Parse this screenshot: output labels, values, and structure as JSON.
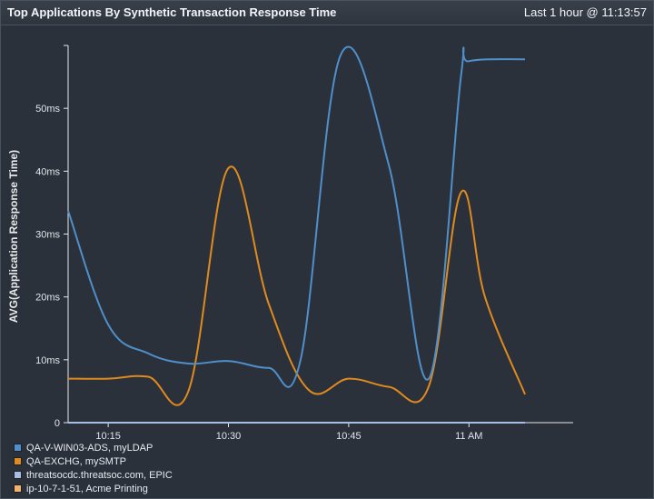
{
  "header": {
    "title": "Top Applications By Synthetic Transaction Response Time",
    "time_range": "Last 1 hour @ 11:13:57"
  },
  "colors": {
    "background": "#2b313b",
    "axis": "#e8e8e8"
  },
  "chart_data": {
    "type": "line",
    "title": "",
    "xlabel": "",
    "ylabel": "AVG(Application Response Time)",
    "ylim": [
      0,
      60
    ],
    "y_unit": "ms",
    "y_ticks": [
      0,
      10,
      20,
      30,
      40,
      50
    ],
    "y_tick_labels": [
      "0",
      "10ms",
      "20ms",
      "30ms",
      "40ms",
      "50ms"
    ],
    "xlim": [
      "10:10",
      "11:13"
    ],
    "x_ticks": [
      "10:15",
      "10:30",
      "10:45",
      "11:00"
    ],
    "x_tick_labels": [
      "10:15",
      "10:30",
      "10:45",
      "11 AM"
    ],
    "grid": false,
    "legend_position": "bottom-left",
    "x": [
      "10:10",
      "10:15",
      "10:20",
      "10:25",
      "10:30",
      "10:35",
      "10:40",
      "10:45",
      "10:50",
      "10:55",
      "11:00",
      "11:05",
      "11:10"
    ],
    "series": [
      {
        "name": "QA-V-WIN03-ADS, myLDAP",
        "color": "#4f8fca",
        "values": [
          33.7,
          15.6,
          11,
          9.4,
          9.8,
          8.7,
          10,
          58.5,
          41,
          7,
          55,
          57.5,
          57.8
        ],
        "x": [
          "10:10",
          "10:15",
          "10:20",
          "10:25",
          "10:30",
          "10:35",
          "10:39",
          "10:44",
          "10:50",
          "10:55",
          "10:59",
          "11:00",
          "11:07"
        ]
      },
      {
        "name": "QA-EXCHG, mySMTP",
        "color": "#e08a1e",
        "values": [
          7,
          7,
          7.3,
          5,
          40.5,
          19,
          5.2,
          7,
          5.7,
          5.8,
          36.6,
          20,
          4.5
        ],
        "x": [
          "10:10",
          "10:15",
          "10:20",
          "10:25",
          "10:30",
          "10:35",
          "10:40",
          "10:45",
          "10:50",
          "10:55",
          "10:59",
          "11:02",
          "11:07"
        ]
      },
      {
        "name": "threatsocdc.threatsoc.com, EPIC",
        "color": "#a7bde3",
        "values": [
          0,
          0,
          0,
          0,
          0,
          0,
          0,
          0,
          0,
          0,
          0,
          0,
          0
        ],
        "x": [
          "10:10",
          "10:15",
          "10:20",
          "10:25",
          "10:30",
          "10:35",
          "10:40",
          "10:45",
          "10:50",
          "10:55",
          "11:00",
          "11:05",
          "11:07"
        ]
      },
      {
        "name": "ip-10-7-1-51, Acme Printing",
        "color": "#f5b26b",
        "values": [
          0,
          0,
          0,
          0,
          0,
          0,
          0,
          0,
          0,
          0,
          0,
          0,
          0
        ],
        "x": [
          "10:10",
          "10:15",
          "10:20",
          "10:25",
          "10:30",
          "10:35",
          "10:40",
          "10:45",
          "10:50",
          "10:55",
          "11:00",
          "11:05",
          "11:07"
        ]
      }
    ]
  }
}
